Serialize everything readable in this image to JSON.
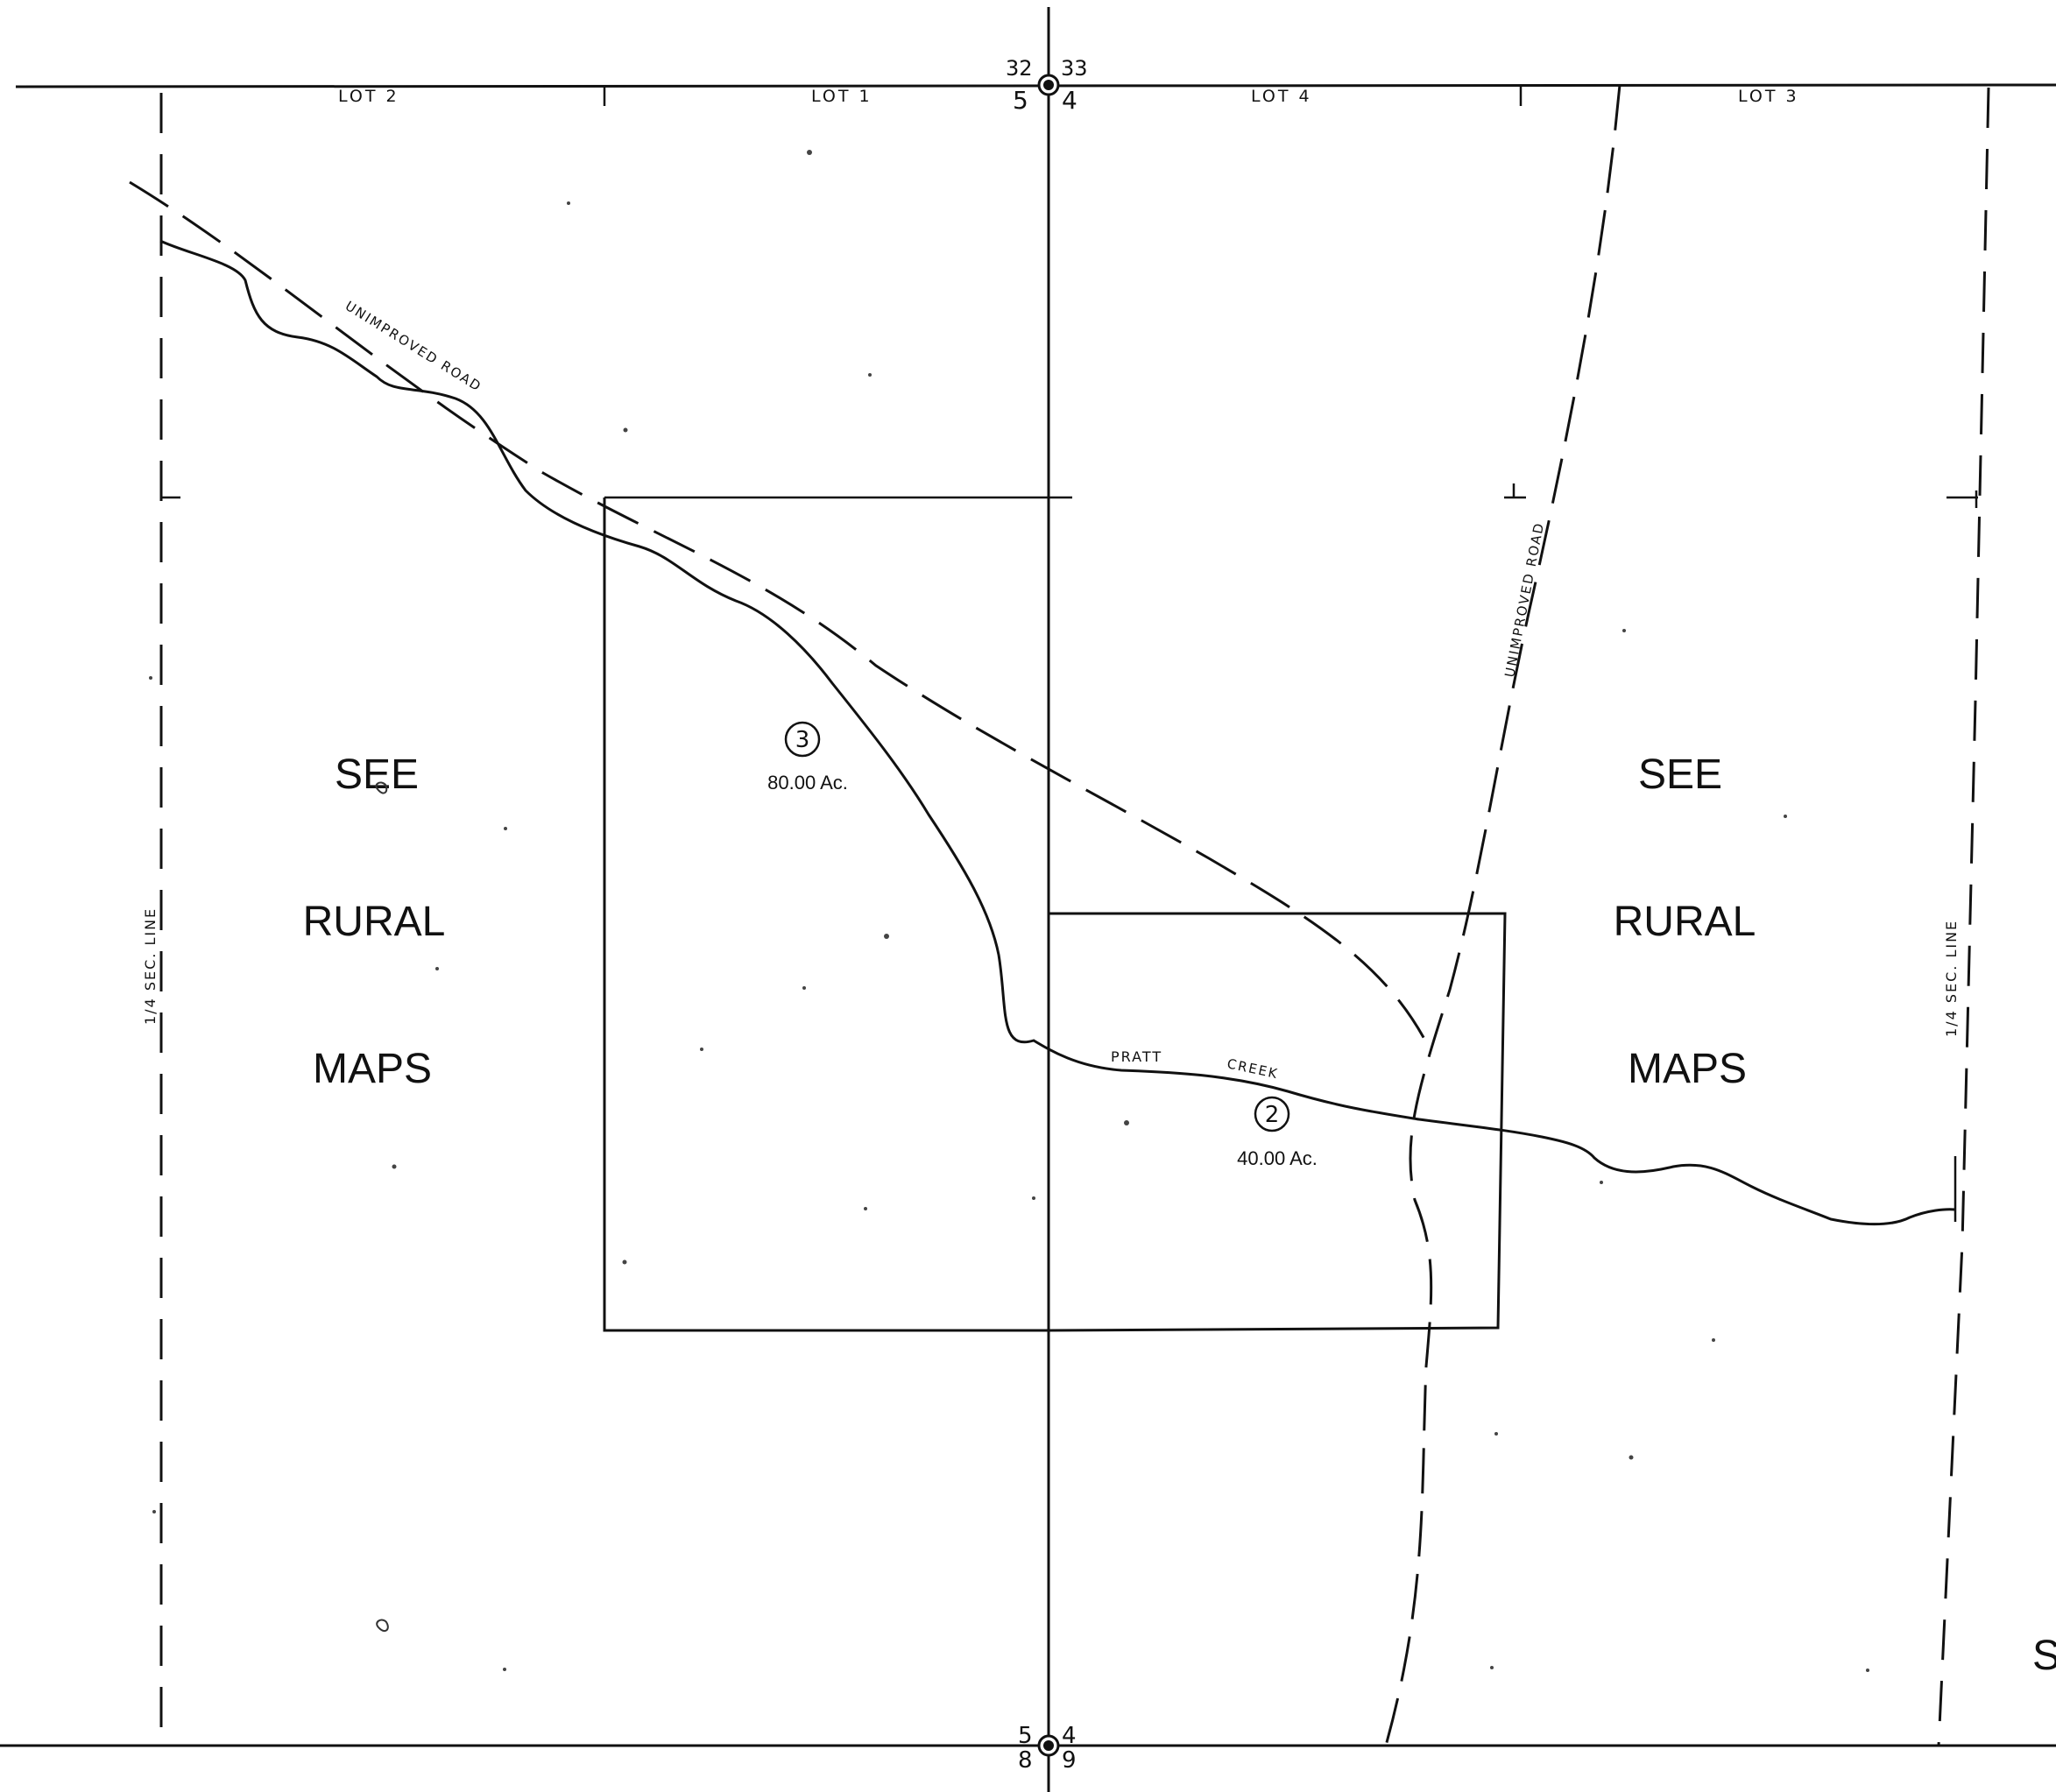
{
  "lots": {
    "lot2": "LOT 2",
    "lot1": "LOT 1",
    "lot4": "LOT 4",
    "lot3": "LOT 3"
  },
  "section_numbers": {
    "top_left_upper": "32",
    "top_right_upper": "33",
    "top_left_lower": "5",
    "top_right_lower": "4",
    "bottom_left_upper": "5",
    "bottom_right_upper": "4",
    "bottom_left_lower": "8",
    "bottom_right_lower": "9"
  },
  "parcels": [
    {
      "number": "3",
      "area": "80.00 Ac."
    },
    {
      "number": "2",
      "area": "40.00 Ac."
    }
  ],
  "features": {
    "road_west": "UNIMPROVED ROAD",
    "road_east": "UNIMPROVED ROAD",
    "creek_word1": "PRATT",
    "creek_word2": "CREEK"
  },
  "reference_blocks": {
    "west": [
      "SEE",
      "RURAL",
      "MAPS"
    ],
    "east": [
      "SEE",
      "RURAL",
      "MAPS"
    ]
  },
  "quarter_lines": {
    "west": "1/4 SEC. LINE",
    "east": "1/4 SEC. LINE"
  },
  "edge_fragment": "S"
}
